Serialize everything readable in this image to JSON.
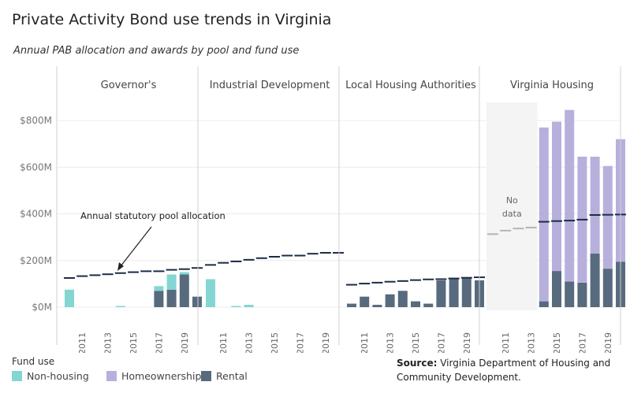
{
  "header": {
    "title": "Private Activity Bond use trends in Virginia",
    "subtitle": "Annual PAB allocation and awards by pool and fund use"
  },
  "legend": {
    "title": "Fund use",
    "items": [
      {
        "label": "Non-housing",
        "color": "#83d6d1"
      },
      {
        "label": "Homeownership",
        "color": "#b7b0dd"
      },
      {
        "label": "Rental",
        "color": "#586a7e"
      }
    ]
  },
  "source": {
    "label": "Source:",
    "text": "Virginia Department of Housing and Community Development."
  },
  "chart_data": {
    "type": "bar",
    "stacked": true,
    "years": [
      2010,
      2011,
      2012,
      2013,
      2014,
      2015,
      2016,
      2017,
      2018,
      2019,
      2020
    ],
    "x_tick_labels": [
      "2011",
      "2013",
      "2015",
      "2017",
      "2019"
    ],
    "y_ticks": [
      0,
      200,
      400,
      600,
      800
    ],
    "y_tick_labels": [
      "$0M",
      "$200M",
      "$400M",
      "$600M",
      "$800M"
    ],
    "ylim": [
      -25,
      870
    ],
    "grid": true,
    "annotation": "Annual statutory pool allocation",
    "no_data_label": [
      "No",
      "data"
    ],
    "panels": [
      {
        "name": "Governor's",
        "nonhousing": [
          75,
          0,
          0,
          0,
          5,
          0,
          0,
          20,
          65,
          10,
          0
        ],
        "homeownership": [
          0,
          0,
          0,
          0,
          0,
          0,
          0,
          0,
          0,
          0,
          0
        ],
        "rental": [
          0,
          0,
          0,
          0,
          0,
          0,
          0,
          70,
          75,
          140,
          45
        ],
        "allocation": [
          125,
          133,
          137,
          141,
          146,
          150,
          154,
          154,
          160,
          163,
          168
        ],
        "no_data_years": []
      },
      {
        "name": "Industrial Development",
        "nonhousing": [
          120,
          0,
          5,
          10,
          0,
          0,
          0,
          0,
          0,
          0,
          0
        ],
        "homeownership": [
          0,
          0,
          0,
          0,
          0,
          0,
          0,
          0,
          0,
          0,
          0
        ],
        "rental": [
          0,
          0,
          0,
          0,
          0,
          0,
          0,
          0,
          0,
          0,
          0
        ],
        "allocation": [
          181,
          190,
          196,
          203,
          210,
          216,
          221,
          221,
          229,
          233,
          233
        ],
        "no_data_years": []
      },
      {
        "name": "Local Housing Authorities",
        "nonhousing": [
          0,
          0,
          0,
          0,
          0,
          0,
          0,
          0,
          0,
          0,
          0
        ],
        "homeownership": [
          0,
          0,
          0,
          0,
          0,
          0,
          0,
          0,
          0,
          0,
          0
        ],
        "rental": [
          15,
          45,
          10,
          55,
          70,
          25,
          15,
          115,
          125,
          125,
          115
        ],
        "allocation": [
          96,
          101,
          105,
          109,
          112,
          116,
          119,
          120,
          123,
          126,
          128
        ],
        "no_data_years": []
      },
      {
        "name": "Virginia Housing",
        "nonhousing": [
          0,
          0,
          0,
          0,
          0,
          0,
          0,
          0,
          0,
          0,
          0
        ],
        "homeownership": [
          0,
          0,
          0,
          0,
          745,
          640,
          735,
          540,
          415,
          440,
          525
        ],
        "rental": [
          0,
          0,
          0,
          0,
          25,
          155,
          110,
          105,
          230,
          165,
          195
        ],
        "allocation": [
          313,
          328,
          337,
          341,
          366,
          369,
          371,
          375,
          395,
          396,
          397
        ],
        "no_data_years": [
          2010,
          2011,
          2012,
          2013
        ]
      }
    ]
  }
}
